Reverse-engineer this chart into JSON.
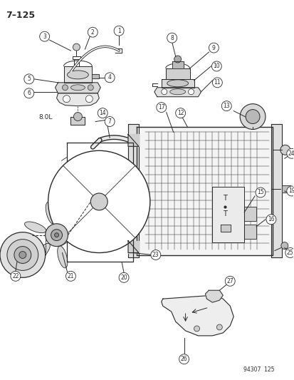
{
  "page_id": "7–125",
  "footer_text": "94307  125",
  "bg": "#ffffff",
  "lc": "#2a2a2a",
  "figsize": [
    4.14,
    5.33
  ],
  "dpi": 100,
  "label_8OL": "8.0L"
}
